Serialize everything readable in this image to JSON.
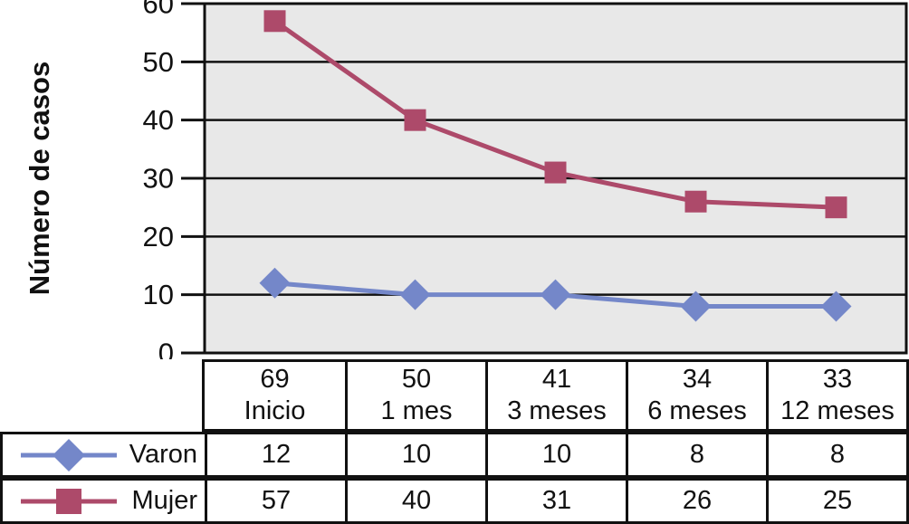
{
  "chart_data": {
    "type": "line",
    "title": "",
    "xlabel": "",
    "ylabel": "Número de casos",
    "ylim": [
      0,
      60
    ],
    "yticks": [
      0,
      10,
      20,
      30,
      40,
      50,
      60
    ],
    "grid": true,
    "plot_bg": "#e8e8e8",
    "axis_color": "#111111",
    "legend_position": "table-left-column",
    "categories": [
      "Inicio",
      "1 mes",
      "3 meses",
      "6 meses",
      "12 meses"
    ],
    "category_totals": [
      "69",
      "50",
      "41",
      "34",
      "33"
    ],
    "series": [
      {
        "name": "Varon",
        "marker": "diamond",
        "color": "#7487c9",
        "values": [
          12,
          10,
          10,
          8,
          8
        ]
      },
      {
        "name": "Mujer",
        "marker": "square",
        "color": "#ad4a6a",
        "values": [
          57,
          40,
          31,
          26,
          25
        ]
      }
    ]
  }
}
